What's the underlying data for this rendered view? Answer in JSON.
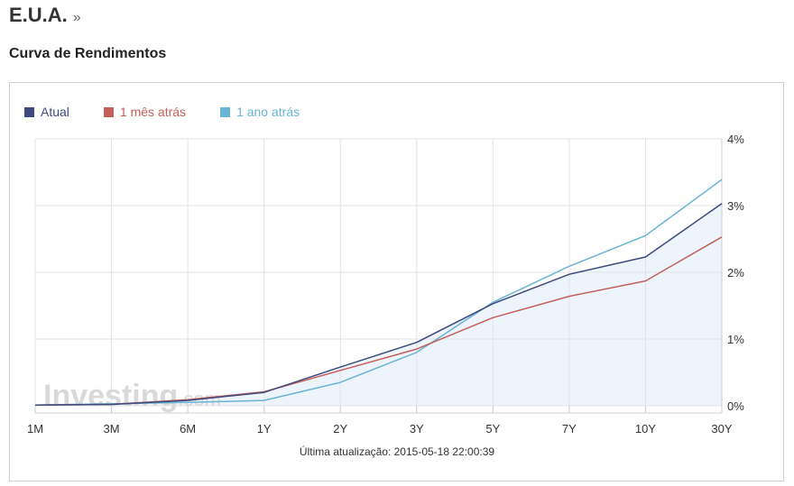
{
  "header": {
    "country": "E.U.A.",
    "more_link": "»"
  },
  "subtitle": "Curva de Rendimentos",
  "footer": "Última atualização: 2015-05-18 22:00:39",
  "watermark": {
    "main": "Investing",
    "suffix": ".com"
  },
  "colors": {
    "atual": "#3d4a7e",
    "mes": "#c4605a",
    "ano": "#6ab4d4",
    "fill": "#eef4fc",
    "grid": "#e3e3e3",
    "axis": "#cccccc"
  },
  "chart_data": {
    "type": "line",
    "categories": [
      "1M",
      "3M",
      "6M",
      "1Y",
      "2Y",
      "3Y",
      "5Y",
      "7Y",
      "10Y",
      "30Y"
    ],
    "y_ticks": [
      "0%",
      "1%",
      "2%",
      "3%",
      "4%"
    ],
    "ylim": [
      0,
      4
    ],
    "y_axis_position": "right",
    "grid": true,
    "legend_position": "top-left",
    "series": [
      {
        "name": "Atual",
        "color": "#3d4a7e",
        "values": [
          0.01,
          0.02,
          0.08,
          0.2,
          0.58,
          0.95,
          1.53,
          1.97,
          2.23,
          3.03
        ],
        "filled": true
      },
      {
        "name": "1 mês atrás",
        "color": "#c4605a",
        "values": [
          0.01,
          0.02,
          0.09,
          0.21,
          0.53,
          0.85,
          1.32,
          1.64,
          1.87,
          2.53
        ]
      },
      {
        "name": "1 ano atrás",
        "color": "#6ab4d4",
        "values": [
          0.01,
          0.03,
          0.05,
          0.08,
          0.35,
          0.8,
          1.55,
          2.09,
          2.55,
          3.39
        ]
      }
    ]
  }
}
